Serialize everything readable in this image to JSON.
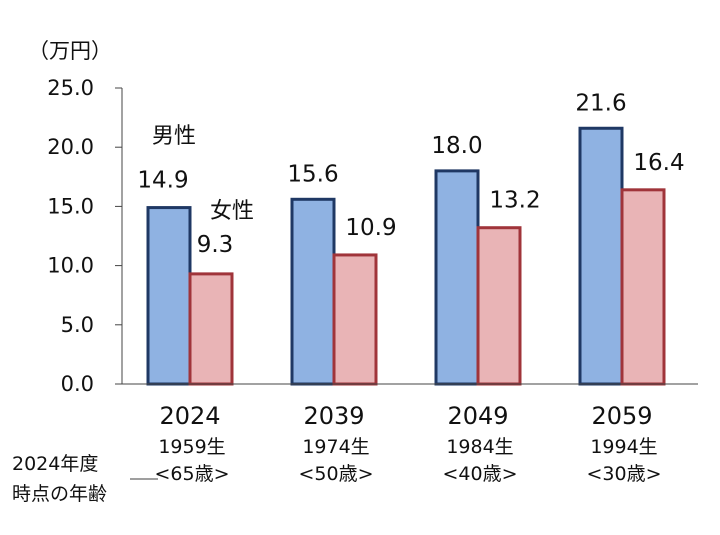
{
  "chart_data": {
    "type": "bar",
    "unit_label": "（万円）",
    "categories": [
      "2024",
      "2039",
      "2049",
      "2059"
    ],
    "category_sub": [
      [
        "1959生",
        "<65歳>"
      ],
      [
        "1974生",
        "<50歳>"
      ],
      [
        "1984生",
        "<40歳>"
      ],
      [
        "1994生",
        "<30歳>"
      ]
    ],
    "series": [
      {
        "name": "男性",
        "values": [
          14.9,
          15.6,
          18.0,
          21.6
        ],
        "fill": "#8fb2e2",
        "stroke": "#1f3864"
      },
      {
        "name": "女性",
        "values": [
          9.3,
          10.9,
          13.2,
          16.4
        ],
        "fill": "#e9b4b6",
        "stroke": "#a0343a"
      }
    ],
    "value_labels": [
      [
        "14.9",
        "15.6",
        "18.0",
        "21.6"
      ],
      [
        "9.3",
        "10.9",
        "13.2",
        "16.4"
      ]
    ],
    "ylim": [
      0,
      25
    ],
    "yticks": [
      "0.0",
      "5.0",
      "10.0",
      "15.0",
      "20.0",
      "25.0"
    ],
    "grid": false,
    "legend": "inline-labels",
    "row_note": [
      "2024年度",
      "時点の年齢"
    ]
  }
}
